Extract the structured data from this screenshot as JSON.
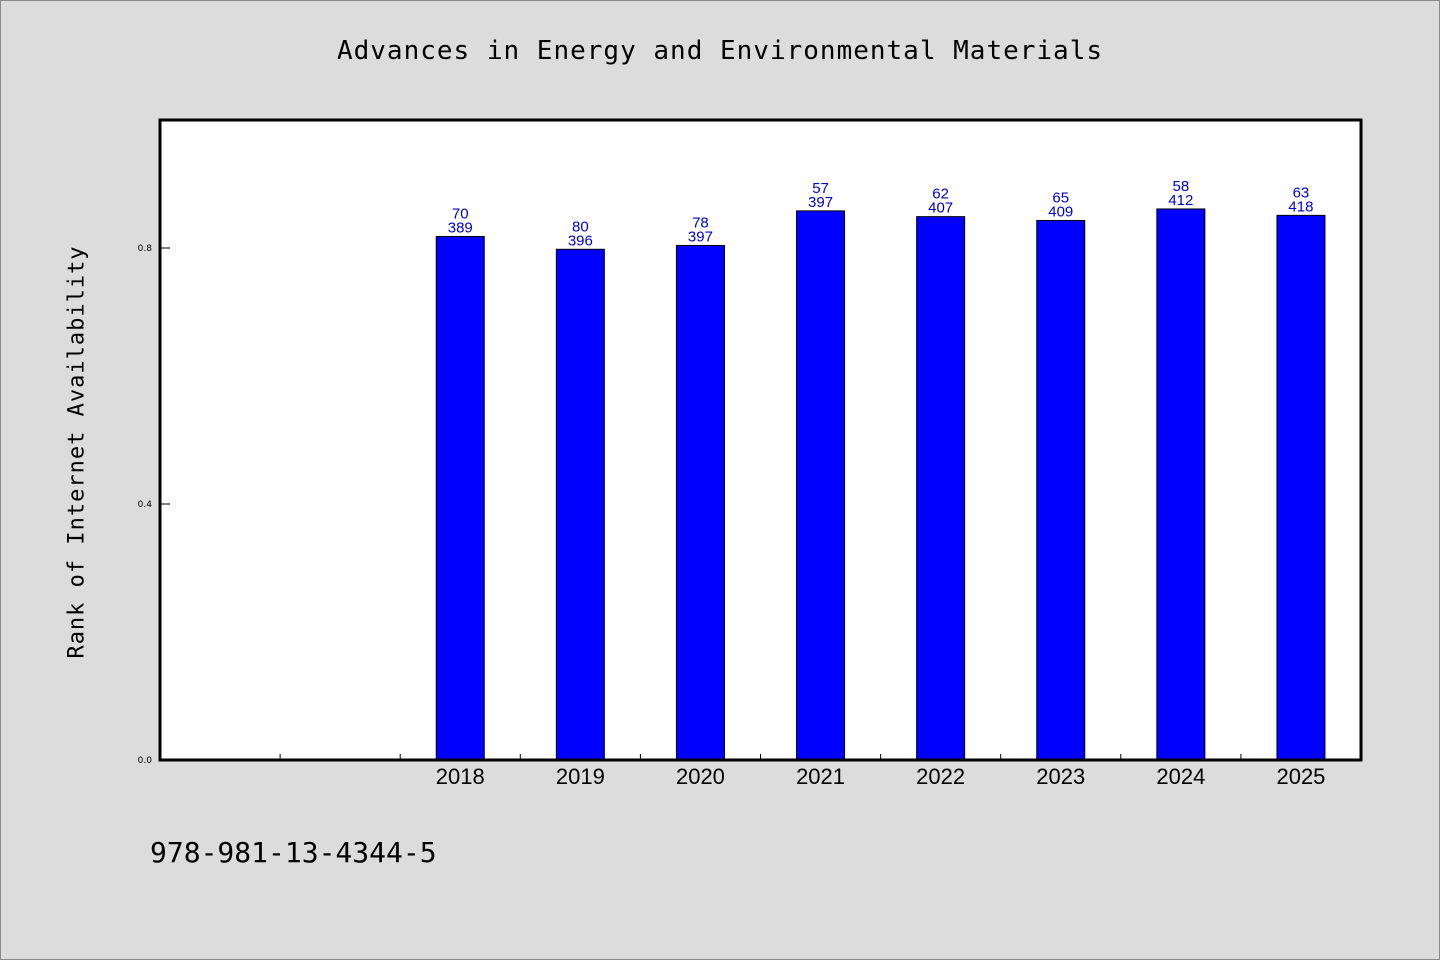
{
  "chart_data": {
    "type": "bar",
    "title": "Advances in Energy and Environmental Materials",
    "xlabel": "",
    "ylabel": "Rank of Internet Availability",
    "categories": [
      "",
      "",
      "2018",
      "2019",
      "2020",
      "2021",
      "2022",
      "2023",
      "2024",
      "2025"
    ],
    "values": [
      null,
      null,
      0.818,
      0.798,
      0.804,
      0.858,
      0.849,
      0.843,
      0.861,
      0.851
    ],
    "labels_top": [
      "",
      "",
      "70",
      "80",
      "78",
      "57",
      "62",
      "65",
      "58",
      "63"
    ],
    "labels_bottom": [
      "",
      "",
      "389",
      "396",
      "397",
      "397",
      "407",
      "409",
      "412",
      "418"
    ],
    "yticks": [
      "0.0",
      "0.4",
      "0.8"
    ],
    "ylim": [
      0,
      1.0
    ],
    "grid": false,
    "bar_color": "#0000ff",
    "label_color": "#0000cc"
  },
  "footer": {
    "isbn": "978-981-13-4344-5"
  }
}
